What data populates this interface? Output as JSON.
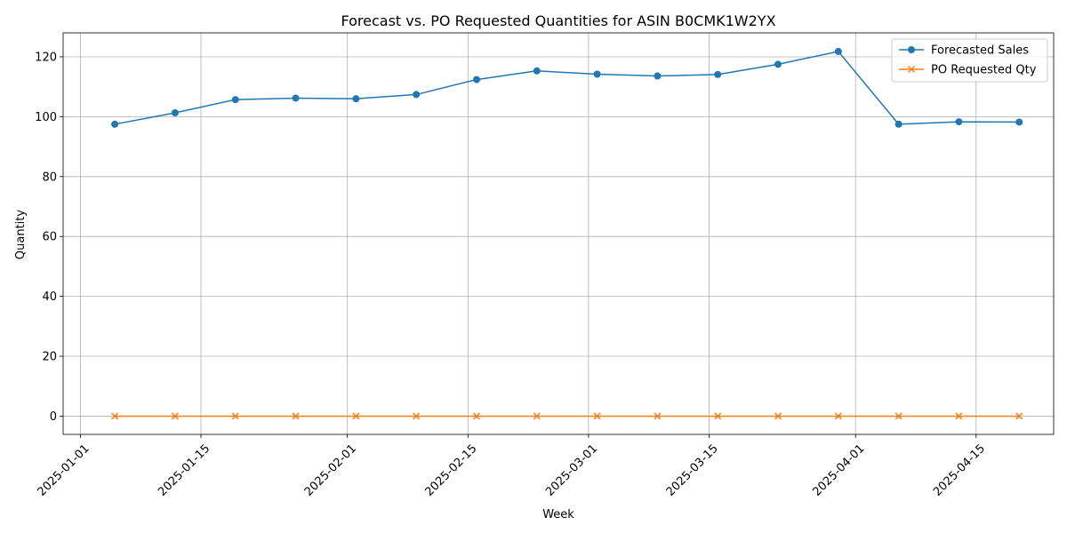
{
  "chart_data": {
    "type": "line",
    "title": "Forecast vs. PO Requested Quantities for ASIN B0CMK1W2YX",
    "xlabel": "Week",
    "ylabel": "Quantity",
    "x": [
      "2025-01-05",
      "2025-01-12",
      "2025-01-19",
      "2025-01-26",
      "2025-02-02",
      "2025-02-09",
      "2025-02-16",
      "2025-02-23",
      "2025-03-02",
      "2025-03-09",
      "2025-03-16",
      "2025-03-23",
      "2025-03-30",
      "2025-04-06",
      "2025-04-13",
      "2025-04-20"
    ],
    "x_ticks": [
      "2025-01-01",
      "2025-01-15",
      "2025-02-01",
      "2025-02-15",
      "2025-03-01",
      "2025-03-15",
      "2025-04-01",
      "2025-04-15"
    ],
    "xlim": [
      "2024-12-30",
      "2025-04-24"
    ],
    "y_ticks": [
      0,
      20,
      40,
      60,
      80,
      100,
      120
    ],
    "ylim": [
      -6.1,
      128
    ],
    "grid": true,
    "legend_position": "top-right",
    "series": [
      {
        "name": "Forecasted Sales",
        "color": "#1f77b4",
        "marker": "circle",
        "values": [
          97.5,
          101.3,
          105.7,
          106.2,
          106.0,
          107.4,
          112.4,
          115.3,
          114.2,
          113.6,
          114.1,
          117.5,
          121.8,
          97.5,
          98.3,
          98.2
        ]
      },
      {
        "name": "PO Requested Qty",
        "color": "#ff7f0e",
        "marker": "x",
        "values": [
          0,
          0,
          0,
          0,
          0,
          0,
          0,
          0,
          0,
          0,
          0,
          0,
          0,
          0,
          0,
          0
        ]
      }
    ]
  }
}
